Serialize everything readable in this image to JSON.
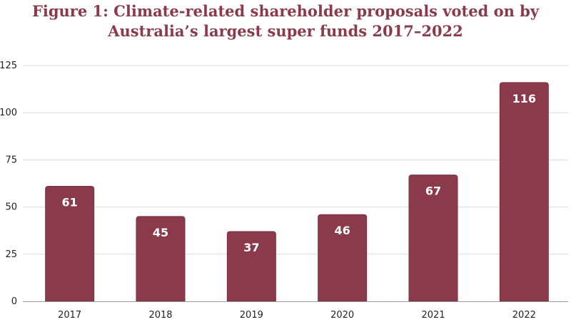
{
  "chart_data": {
    "type": "bar",
    "title_lines": [
      "Figure 1: Climate-related shareholder proposals voted on by",
      "Australia’s largest super funds 2017–2022"
    ],
    "categories": [
      "2017",
      "2018",
      "2019",
      "2020",
      "2021",
      "2022"
    ],
    "values": [
      61,
      45,
      37,
      46,
      67,
      116
    ],
    "data_labels": [
      "61",
      "45",
      "37",
      "46",
      "67",
      "116"
    ],
    "yticks": [
      0,
      25,
      50,
      75,
      100,
      125
    ],
    "ytick_labels": [
      "0",
      "25",
      "50",
      "75",
      "100",
      "125"
    ],
    "ylim": [
      0,
      125
    ],
    "xlabel": "",
    "ylabel": "",
    "grid": true,
    "legend": "none"
  },
  "colors": {
    "bar": "#8b3a4b",
    "bar_edge": "#7a2f3f",
    "title": "#8b3a4b",
    "grid": "#dcdcdc",
    "axis": "#999999"
  }
}
